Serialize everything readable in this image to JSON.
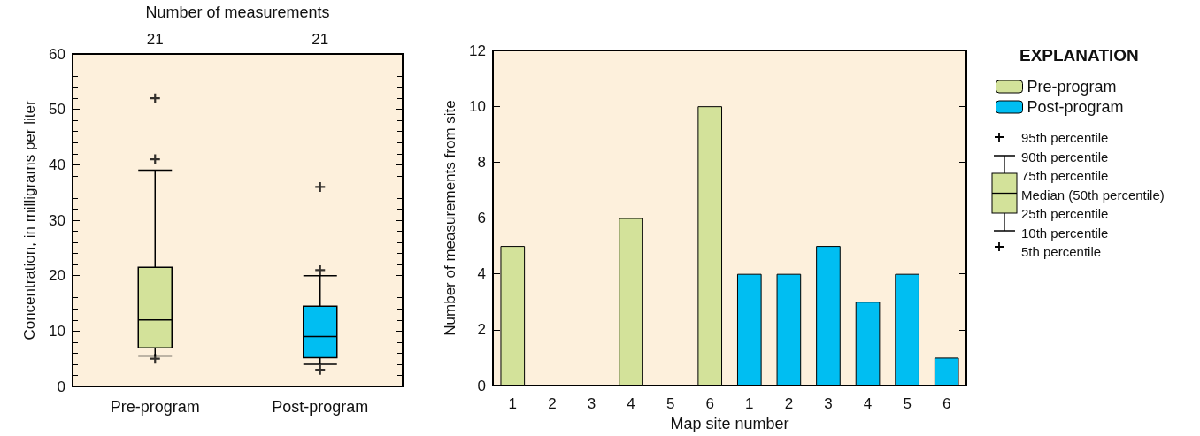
{
  "chart_data": [
    {
      "type": "box",
      "ylabel": "Concentration, in milligrams per liter",
      "x2label": "Number of measurements",
      "categories": [
        "Pre-program",
        "Post-program"
      ],
      "colors": [
        "#d3e29a",
        "#00bef2"
      ],
      "boxes": [
        {
          "low": 5.5,
          "q1": 7,
          "median": 12,
          "q3": 21.5,
          "high": 39,
          "outliers": [
            52,
            41,
            5
          ]
        },
        {
          "low": 4,
          "q1": 5.2,
          "median": 9,
          "q3": 14.5,
          "high": 20,
          "outliers": [
            36,
            21,
            3
          ]
        }
      ],
      "marker": "cross",
      "ylim": [
        0,
        60
      ],
      "yticks": [
        0,
        10,
        20,
        30,
        40,
        50,
        60
      ],
      "annotations": [
        "21",
        "21"
      ]
    },
    {
      "type": "bar",
      "xlabel": "Map site number",
      "ylabel": "Number of measurements from site",
      "legend_title": "EXPLANATION",
      "legend": "right",
      "categories": [
        "1",
        "2",
        "3",
        "4",
        "5",
        "6",
        "1",
        "2",
        "3",
        "4",
        "5",
        "6"
      ],
      "series": [
        {
          "name": "Pre-program",
          "color": "#d3e29a",
          "values": [
            5,
            0,
            0,
            6,
            0,
            10,
            null,
            null,
            null,
            null,
            null,
            null
          ]
        },
        {
          "name": "Post-program",
          "color": "#00bef2",
          "values": [
            null,
            null,
            null,
            null,
            null,
            null,
            4,
            4,
            5,
            3,
            4,
            1
          ]
        }
      ],
      "stacked": true,
      "ylim": [
        0,
        12
      ],
      "yticks": [
        0,
        2,
        4,
        6,
        8,
        10,
        12
      ],
      "annotations": [
        "95th percentile",
        "90th percentile",
        "75th percentile",
        "Median (50th percentile)",
        "25th percentile",
        "10th percentile",
        "5th percentile"
      ]
    }
  ]
}
